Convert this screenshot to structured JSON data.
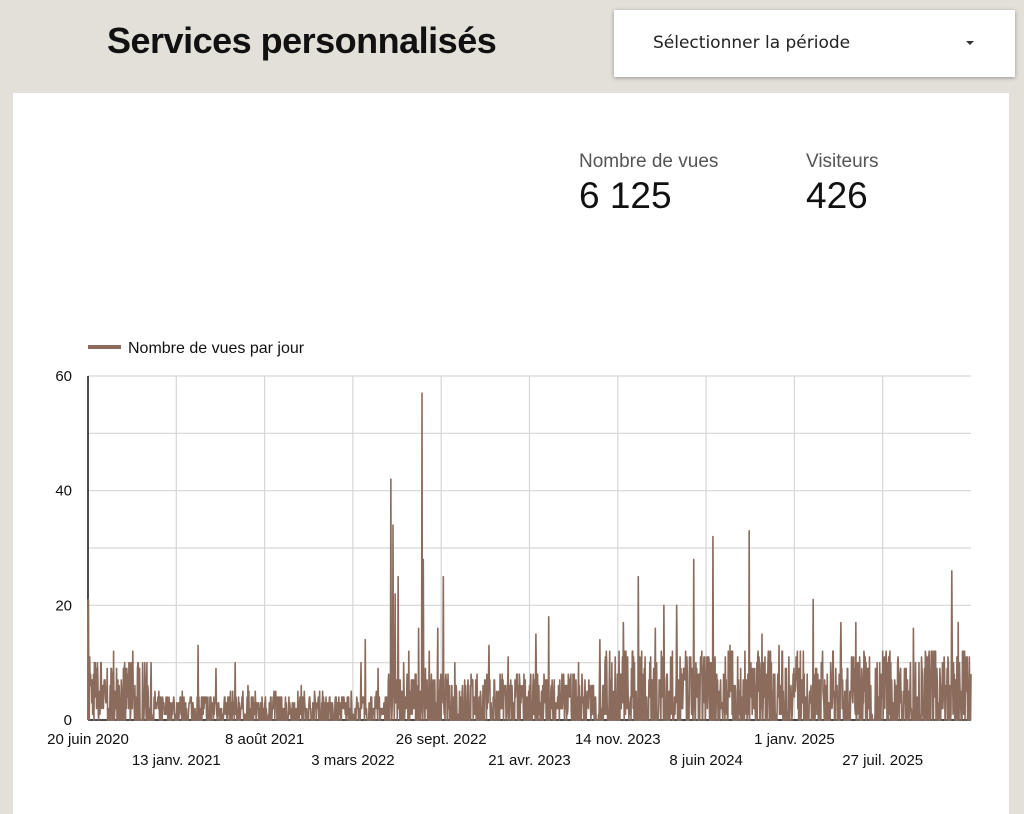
{
  "header": {
    "title": "Services personnalisés",
    "period_select": {
      "label": "Sélectionner la période"
    }
  },
  "kpis": {
    "views": {
      "label": "Nombre de vues",
      "value": "6 125"
    },
    "visitors": {
      "label": "Visiteurs",
      "value": "426"
    }
  },
  "colors": {
    "series": "#8b6b5c",
    "grid": "#d6d6d6",
    "background": "#e3e0d9"
  },
  "chart_data": {
    "type": "line",
    "title": "",
    "legend": [
      "Nombre de vues par jour"
    ],
    "legend_position": "top-left",
    "ylim": [
      0,
      60
    ],
    "y_ticks": [
      0,
      20,
      40,
      60
    ],
    "x_ticks": [
      {
        "day": 0,
        "label": "20 juin 2020"
      },
      {
        "day": 207,
        "label": "13 janv. 2021"
      },
      {
        "day": 414,
        "label": "8 août 2021"
      },
      {
        "day": 621,
        "label": "3 mars 2022"
      },
      {
        "day": 828,
        "label": "26 sept. 2022"
      },
      {
        "day": 1035,
        "label": "21 avr. 2023"
      },
      {
        "day": 1242,
        "label": "14 nov. 2023"
      },
      {
        "day": 1449,
        "label": "8 juin 2024"
      },
      {
        "day": 1656,
        "label": "1 janv. 2025"
      },
      {
        "day": 1863,
        "label": "27 juil. 2025"
      }
    ],
    "x_start": "2020-06-20",
    "x_range_days": [
      0,
      2070
    ],
    "grid": true,
    "series": [
      {
        "name": "Nombre de vues par jour",
        "peaks": [
          [
            1,
            21
          ],
          [
            4,
            11
          ],
          [
            30,
            10
          ],
          [
            60,
            12
          ],
          [
            105,
            12
          ],
          [
            140,
            6
          ],
          [
            258,
            13
          ],
          [
            300,
            9
          ],
          [
            345,
            10
          ],
          [
            375,
            6
          ],
          [
            440,
            5
          ],
          [
            500,
            6
          ],
          [
            550,
            5
          ],
          [
            600,
            4
          ],
          [
            640,
            10
          ],
          [
            650,
            14
          ],
          [
            680,
            9
          ],
          [
            710,
            42
          ],
          [
            715,
            34
          ],
          [
            720,
            22
          ],
          [
            727,
            25
          ],
          [
            740,
            10
          ],
          [
            752,
            12
          ],
          [
            775,
            16
          ],
          [
            783,
            57
          ],
          [
            786,
            28
          ],
          [
            800,
            12
          ],
          [
            820,
            16
          ],
          [
            833,
            25
          ],
          [
            860,
            10
          ],
          [
            940,
            13
          ],
          [
            985,
            11
          ],
          [
            1050,
            15
          ],
          [
            1080,
            18
          ],
          [
            1150,
            10
          ],
          [
            1200,
            14
          ],
          [
            1255,
            17
          ],
          [
            1290,
            25
          ],
          [
            1330,
            16
          ],
          [
            1350,
            20
          ],
          [
            1380,
            20
          ],
          [
            1420,
            28
          ],
          [
            1465,
            32
          ],
          [
            1505,
            13
          ],
          [
            1550,
            33
          ],
          [
            1580,
            15
          ],
          [
            1620,
            13
          ],
          [
            1700,
            21
          ],
          [
            1765,
            17
          ],
          [
            1800,
            17
          ],
          [
            1880,
            12
          ],
          [
            1935,
            16
          ],
          [
            1970,
            11
          ],
          [
            2025,
            26
          ],
          [
            2040,
            17
          ],
          [
            2055,
            12
          ]
        ]
      }
    ]
  }
}
